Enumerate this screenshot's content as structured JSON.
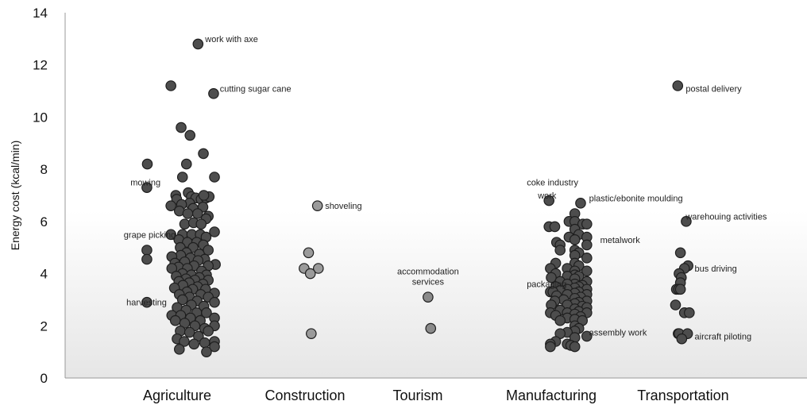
{
  "chart_data": {
    "type": "scatter",
    "ylabel": "Energy cost (kcal/min)",
    "ylim": [
      0,
      14
    ],
    "yticks": [
      0,
      2,
      4,
      6,
      8,
      10,
      12,
      14
    ],
    "grid": false,
    "categories": [
      "Agriculture",
      "Construction",
      "Tourism",
      "Manufacturing",
      "Transportation"
    ],
    "point_colors": {
      "Agriculture": "#4d4d4d",
      "Construction": "#9a9a9a",
      "Tourism": "#8a8a8a",
      "Manufacturing": "#4d4d4d",
      "Transportation": "#4d4d4d"
    },
    "series": [
      {
        "category": "Agriculture",
        "points": [
          {
            "x": 0.47,
            "y": 12.8
          },
          {
            "x": 0.82,
            "y": 10.9
          },
          {
            "x": -0.14,
            "y": 11.2
          },
          {
            "x": 0.09,
            "y": 9.6
          },
          {
            "x": 0.29,
            "y": 9.3
          },
          {
            "x": 0.59,
            "y": 8.6
          },
          {
            "x": 0.21,
            "y": 8.2
          },
          {
            "x": -0.67,
            "y": 8.2
          },
          {
            "x": 0.12,
            "y": 7.7
          },
          {
            "x": 0.84,
            "y": 7.7
          },
          {
            "x": -0.68,
            "y": 7.3
          },
          {
            "x": 0.25,
            "y": 7.1
          },
          {
            "x": 0.32,
            "y": 6.95
          },
          {
            "x": 0.42,
            "y": 6.9
          },
          {
            "x": 0.54,
            "y": 6.85
          },
          {
            "x": 0.65,
            "y": 6.9
          },
          {
            "x": 0.72,
            "y": 6.95
          },
          {
            "x": 0.6,
            "y": 7.0
          },
          {
            "x": -0.03,
            "y": 7.0
          },
          {
            "x": -0.01,
            "y": 6.85
          },
          {
            "x": 0.28,
            "y": 6.7
          },
          {
            "x": 0.1,
            "y": 6.65
          },
          {
            "x": -0.14,
            "y": 6.6
          },
          {
            "x": 0.36,
            "y": 6.5
          },
          {
            "x": 0.58,
            "y": 6.55
          },
          {
            "x": 0.05,
            "y": 6.4
          },
          {
            "x": 0.7,
            "y": 6.2
          },
          {
            "x": 0.24,
            "y": 6.3
          },
          {
            "x": 0.46,
            "y": 6.3
          },
          {
            "x": 0.65,
            "y": 6.1
          },
          {
            "x": 0.17,
            "y": 5.9
          },
          {
            "x": 0.37,
            "y": 5.95
          },
          {
            "x": 0.54,
            "y": 5.9
          },
          {
            "x": 0.84,
            "y": 5.6
          },
          {
            "x": -0.14,
            "y": 5.5
          },
          {
            "x": 0.12,
            "y": 5.5
          },
          {
            "x": 0.33,
            "y": 5.5
          },
          {
            "x": 0.52,
            "y": 5.5
          },
          {
            "x": 0.65,
            "y": 5.4
          },
          {
            "x": 0.04,
            "y": 5.3
          },
          {
            "x": 0.23,
            "y": 5.2
          },
          {
            "x": 0.44,
            "y": 5.2
          },
          {
            "x": 0.59,
            "y": 5.1
          },
          {
            "x": 0.07,
            "y": 5.0
          },
          {
            "x": 0.36,
            "y": 5.0
          },
          {
            "x": 0.7,
            "y": 4.9
          },
          {
            "x": -0.68,
            "y": 4.9
          },
          {
            "x": 0.21,
            "y": 4.8
          },
          {
            "x": 0.5,
            "y": 4.75
          },
          {
            "x": 0.08,
            "y": 4.7
          },
          {
            "x": -0.12,
            "y": 4.65
          },
          {
            "x": 0.3,
            "y": 4.6
          },
          {
            "x": -0.68,
            "y": 4.55
          },
          {
            "x": 0.62,
            "y": 4.55
          },
          {
            "x": 0.47,
            "y": 4.5
          },
          {
            "x": 0.17,
            "y": 4.45
          },
          {
            "x": -0.05,
            "y": 4.4
          },
          {
            "x": 0.86,
            "y": 4.35
          },
          {
            "x": 0.7,
            "y": 4.3
          },
          {
            "x": 0.38,
            "y": 4.3
          },
          {
            "x": 0.03,
            "y": 4.25
          },
          {
            "x": 0.23,
            "y": 4.2
          },
          {
            "x": -0.12,
            "y": 4.2
          },
          {
            "x": 0.55,
            "y": 4.1
          },
          {
            "x": 0.12,
            "y": 4.0
          },
          {
            "x": 0.32,
            "y": 3.95
          },
          {
            "x": 0.66,
            "y": 3.95
          },
          {
            "x": -0.02,
            "y": 3.9
          },
          {
            "x": 0.5,
            "y": 3.85
          },
          {
            "x": 0.2,
            "y": 3.8
          },
          {
            "x": 0.4,
            "y": 3.75
          },
          {
            "x": 0.7,
            "y": 3.75
          },
          {
            "x": 0.04,
            "y": 3.7
          },
          {
            "x": 0.27,
            "y": 3.65
          },
          {
            "x": 0.58,
            "y": 3.6
          },
          {
            "x": 0.13,
            "y": 3.55
          },
          {
            "x": 0.46,
            "y": 3.5
          },
          {
            "x": -0.06,
            "y": 3.45
          },
          {
            "x": 0.35,
            "y": 3.4
          },
          {
            "x": 0.64,
            "y": 3.4
          },
          {
            "x": 0.22,
            "y": 3.3
          },
          {
            "x": 0.84,
            "y": 3.25
          },
          {
            "x": 0.05,
            "y": 3.2
          },
          {
            "x": 0.53,
            "y": 3.2
          },
          {
            "x": 0.28,
            "y": 3.1
          },
          {
            "x": 0.7,
            "y": 3.1
          },
          {
            "x": 0.12,
            "y": 3.0
          },
          {
            "x": -0.68,
            "y": 2.9
          },
          {
            "x": 0.45,
            "y": 2.95
          },
          {
            "x": 0.84,
            "y": 2.9
          },
          {
            "x": 0.32,
            "y": 2.8
          },
          {
            "x": 0.6,
            "y": 2.75
          },
          {
            "x": 0.0,
            "y": 2.7
          },
          {
            "x": 0.2,
            "y": 2.6
          },
          {
            "x": 0.44,
            "y": 2.5
          },
          {
            "x": 0.66,
            "y": 2.5
          },
          {
            "x": -0.12,
            "y": 2.4
          },
          {
            "x": 0.08,
            "y": 2.4
          },
          {
            "x": 0.84,
            "y": 2.3
          },
          {
            "x": 0.3,
            "y": 2.3
          },
          {
            "x": 0.52,
            "y": 2.2
          },
          {
            "x": -0.04,
            "y": 2.2
          },
          {
            "x": 0.17,
            "y": 2.1
          },
          {
            "x": 0.4,
            "y": 2.0
          },
          {
            "x": 0.84,
            "y": 2.0
          },
          {
            "x": 0.62,
            "y": 1.9
          },
          {
            "x": 0.07,
            "y": 1.8
          },
          {
            "x": 0.28,
            "y": 1.75
          },
          {
            "x": 0.7,
            "y": 1.8
          },
          {
            "x": 0.48,
            "y": 1.6
          },
          {
            "x": 0.0,
            "y": 1.5
          },
          {
            "x": 0.16,
            "y": 1.4
          },
          {
            "x": 0.62,
            "y": 1.35
          },
          {
            "x": 0.84,
            "y": 1.4
          },
          {
            "x": 0.38,
            "y": 1.3
          },
          {
            "x": 0.84,
            "y": 1.2
          },
          {
            "x": 0.05,
            "y": 1.1
          },
          {
            "x": 0.66,
            "y": 1.0
          }
        ]
      },
      {
        "category": "Construction",
        "points": [
          {
            "x": 0.28,
            "y": 6.6
          },
          {
            "x": 0.08,
            "y": 4.8
          },
          {
            "x": -0.02,
            "y": 4.2
          },
          {
            "x": 0.3,
            "y": 4.2
          },
          {
            "x": 0.12,
            "y": 4.0
          },
          {
            "x": 0.14,
            "y": 1.7
          }
        ]
      },
      {
        "category": "Tourism",
        "points": [
          {
            "x": 0.23,
            "y": 3.1
          },
          {
            "x": 0.29,
            "y": 1.9
          }
        ]
      },
      {
        "category": "Manufacturing",
        "points": [
          {
            "x": -0.05,
            "y": 6.8
          },
          {
            "x": 0.66,
            "y": 6.7
          },
          {
            "x": 0.53,
            "y": 6.3
          },
          {
            "x": 0.4,
            "y": 6.0
          },
          {
            "x": 0.53,
            "y": 6.0
          },
          {
            "x": 0.71,
            "y": 5.9
          },
          {
            "x": 0.8,
            "y": 5.9
          },
          {
            "x": -0.05,
            "y": 5.8
          },
          {
            "x": 0.08,
            "y": 5.8
          },
          {
            "x": 0.53,
            "y": 5.7
          },
          {
            "x": 0.62,
            "y": 5.5
          },
          {
            "x": 0.4,
            "y": 5.4
          },
          {
            "x": 0.8,
            "y": 5.4
          },
          {
            "x": 0.53,
            "y": 5.3
          },
          {
            "x": 0.12,
            "y": 5.2
          },
          {
            "x": 0.2,
            "y": 5.1
          },
          {
            "x": 0.8,
            "y": 5.1
          },
          {
            "x": 0.53,
            "y": 4.9
          },
          {
            "x": 0.2,
            "y": 4.9
          },
          {
            "x": 0.62,
            "y": 4.8
          },
          {
            "x": 0.53,
            "y": 4.7
          },
          {
            "x": 0.8,
            "y": 4.6
          },
          {
            "x": 0.1,
            "y": 4.4
          },
          {
            "x": 0.53,
            "y": 4.4
          },
          {
            "x": 0.62,
            "y": 4.3
          },
          {
            "x": 0.36,
            "y": 4.2
          },
          {
            "x": -0.02,
            "y": 4.2
          },
          {
            "x": 0.53,
            "y": 4.1
          },
          {
            "x": 0.8,
            "y": 4.1
          },
          {
            "x": 0.1,
            "y": 4.0
          },
          {
            "x": 0.53,
            "y": 3.95
          },
          {
            "x": 0.36,
            "y": 3.9
          },
          {
            "x": 0.62,
            "y": 3.9
          },
          {
            "x": 0.0,
            "y": 3.85
          },
          {
            "x": 0.53,
            "y": 3.8
          },
          {
            "x": 0.8,
            "y": 3.7
          },
          {
            "x": 0.2,
            "y": 3.7
          },
          {
            "x": 0.53,
            "y": 3.6
          },
          {
            "x": 0.36,
            "y": 3.6
          },
          {
            "x": 0.7,
            "y": 3.55
          },
          {
            "x": 0.62,
            "y": 3.5
          },
          {
            "x": 0.1,
            "y": 3.5
          },
          {
            "x": 0.53,
            "y": 3.45
          },
          {
            "x": 0.8,
            "y": 3.4
          },
          {
            "x": 0.36,
            "y": 3.4
          },
          {
            "x": 0.2,
            "y": 3.35
          },
          {
            "x": 0.62,
            "y": 3.3
          },
          {
            "x": -0.02,
            "y": 3.3
          },
          {
            "x": 0.04,
            "y": 3.3
          },
          {
            "x": 0.53,
            "y": 3.25
          },
          {
            "x": 0.36,
            "y": 3.2
          },
          {
            "x": 0.8,
            "y": 3.2
          },
          {
            "x": 0.12,
            "y": 3.15
          },
          {
            "x": 0.66,
            "y": 3.1
          },
          {
            "x": 0.53,
            "y": 3.05
          },
          {
            "x": 0.28,
            "y": 3.0
          },
          {
            "x": 0.8,
            "y": 2.95
          },
          {
            "x": 0.08,
            "y": 2.95
          },
          {
            "x": 0.62,
            "y": 2.9
          },
          {
            "x": 0.53,
            "y": 2.85
          },
          {
            "x": 0.36,
            "y": 2.8
          },
          {
            "x": 0.0,
            "y": 2.8
          },
          {
            "x": 0.7,
            "y": 2.75
          },
          {
            "x": 0.8,
            "y": 2.7
          },
          {
            "x": 0.53,
            "y": 2.65
          },
          {
            "x": 0.2,
            "y": 2.6
          },
          {
            "x": 0.62,
            "y": 2.55
          },
          {
            "x": -0.02,
            "y": 2.5
          },
          {
            "x": 0.36,
            "y": 2.5
          },
          {
            "x": 0.8,
            "y": 2.5
          },
          {
            "x": 0.53,
            "y": 2.45
          },
          {
            "x": 0.1,
            "y": 2.4
          },
          {
            "x": 0.66,
            "y": 2.35
          },
          {
            "x": 0.36,
            "y": 2.3
          },
          {
            "x": 0.53,
            "y": 2.25
          },
          {
            "x": 0.2,
            "y": 2.2
          },
          {
            "x": 0.7,
            "y": 2.2
          },
          {
            "x": 0.53,
            "y": 2.0
          },
          {
            "x": 0.62,
            "y": 1.9
          },
          {
            "x": 0.53,
            "y": 1.8
          },
          {
            "x": 0.36,
            "y": 1.75
          },
          {
            "x": 0.2,
            "y": 1.7
          },
          {
            "x": 0.8,
            "y": 1.6
          },
          {
            "x": 0.53,
            "y": 1.55
          },
          {
            "x": 0.1,
            "y": 1.4
          },
          {
            "x": 0.36,
            "y": 1.3
          },
          {
            "x": -0.02,
            "y": 1.3
          },
          {
            "x": 0.44,
            "y": 1.25
          },
          {
            "x": -0.02,
            "y": 1.2
          },
          {
            "x": 0.53,
            "y": 1.2
          }
        ]
      },
      {
        "category": "Transportation",
        "points": [
          {
            "x": -0.12,
            "y": 11.2
          },
          {
            "x": 0.07,
            "y": 6.0
          },
          {
            "x": -0.06,
            "y": 4.8
          },
          {
            "x": 0.11,
            "y": 4.3
          },
          {
            "x": 0.03,
            "y": 4.2
          },
          {
            "x": -0.09,
            "y": 4.0
          },
          {
            "x": -0.04,
            "y": 3.85
          },
          {
            "x": -0.06,
            "y": 3.65
          },
          {
            "x": -0.15,
            "y": 3.4
          },
          {
            "x": -0.1,
            "y": 3.4
          },
          {
            "x": -0.06,
            "y": 3.4
          },
          {
            "x": -0.17,
            "y": 2.8
          },
          {
            "x": 0.03,
            "y": 2.5
          },
          {
            "x": 0.14,
            "y": 2.5
          },
          {
            "x": -0.11,
            "y": 1.7
          },
          {
            "x": -0.09,
            "y": 1.7
          },
          {
            "x": 0.1,
            "y": 1.7
          },
          {
            "x": -0.03,
            "y": 1.5
          }
        ]
      }
    ],
    "annotations": [
      {
        "text": "work with axe",
        "category": "Agriculture",
        "x": 0.63,
        "y": 13.0,
        "anchor": "start"
      },
      {
        "text": "cutting sugar cane",
        "category": "Agriculture",
        "x": 0.96,
        "y": 11.1,
        "anchor": "start"
      },
      {
        "text": "mowing",
        "category": "Agriculture",
        "x": -1.05,
        "y": 7.5,
        "anchor": "start"
      },
      {
        "text": "grape picking",
        "category": "Agriculture",
        "x": -1.2,
        "y": 5.5,
        "anchor": "start"
      },
      {
        "text": "harvesting",
        "category": "Agriculture",
        "x": -1.14,
        "y": 2.9,
        "anchor": "start"
      },
      {
        "text": "shoveling",
        "category": "Construction",
        "x": 0.45,
        "y": 6.6,
        "anchor": "start"
      },
      {
        "text": "accommodation",
        "category": "Tourism",
        "x": 0.23,
        "y": 4.1,
        "anchor": "middle"
      },
      {
        "text": "services",
        "category": "Tourism",
        "x": 0.23,
        "y": 3.7,
        "anchor": "middle"
      },
      {
        "text": "coke industry",
        "category": "Manufacturing",
        "x": -0.55,
        "y": 7.5,
        "anchor": "start"
      },
      {
        "text": "work",
        "category": "Manufacturing",
        "x": -0.3,
        "y": 7.0,
        "anchor": "start"
      },
      {
        "text": "plastic/ebonite moulding",
        "category": "Manufacturing",
        "x": 0.85,
        "y": 6.9,
        "anchor": "start"
      },
      {
        "text": "metalwork",
        "category": "Manufacturing",
        "x": 1.1,
        "y": 5.3,
        "anchor": "start"
      },
      {
        "text": "packaging",
        "category": "Manufacturing",
        "x": -0.55,
        "y": 3.6,
        "anchor": "start"
      },
      {
        "text": "assembly work",
        "category": "Manufacturing",
        "x": 0.85,
        "y": 1.75,
        "anchor": "start"
      },
      {
        "text": "postal delivery",
        "category": "Transportation",
        "x": 0.06,
        "y": 11.1,
        "anchor": "start"
      },
      {
        "text": "warehouing activities",
        "category": "Transportation",
        "x": 0.06,
        "y": 6.2,
        "anchor": "start"
      },
      {
        "text": "bus driving",
        "category": "Transportation",
        "x": 0.26,
        "y": 4.2,
        "anchor": "start"
      },
      {
        "text": "aircraft piloting",
        "category": "Transportation",
        "x": 0.26,
        "y": 1.6,
        "anchor": "start"
      }
    ]
  }
}
